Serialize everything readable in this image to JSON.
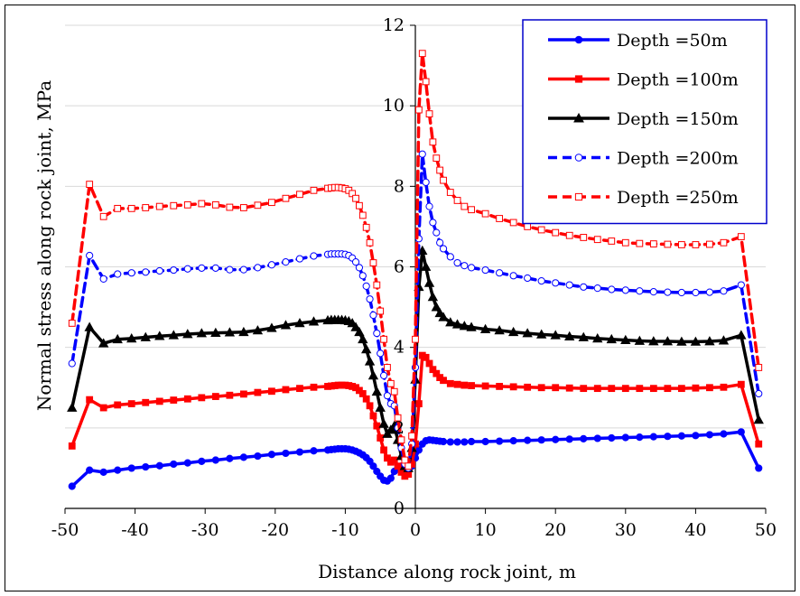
{
  "chart_data": {
    "type": "line",
    "title": "",
    "xlabel": "Distance along rock joint, m",
    "ylabel": "Normal stress  along  rock joint, MPa",
    "xlim": [
      -50,
      50
    ],
    "ylim": [
      0,
      12
    ],
    "xticks": [
      -50,
      -40,
      -30,
      -20,
      -10,
      0,
      10,
      20,
      30,
      40,
      50
    ],
    "yticks": [
      0,
      2,
      4,
      6,
      8,
      10,
      12
    ],
    "grid": "horizontal",
    "legend_position": "top-right",
    "series": [
      {
        "name": "Depth =50m",
        "color": "#0000ff",
        "dash": "solid",
        "marker": "circle-filled",
        "x": [
          -49,
          -46.5,
          -44.5,
          -42.5,
          -40.5,
          -38.5,
          -36.5,
          -34.5,
          -32.5,
          -30.5,
          -28.5,
          -26.5,
          -24.5,
          -22.5,
          -20.5,
          -18.5,
          -16.5,
          -14.5,
          -12.5,
          -12,
          -11.5,
          -11,
          -10.5,
          -10,
          -9.5,
          -9,
          -8.5,
          -8,
          -7.5,
          -7,
          -6.5,
          -6,
          -5.5,
          -5,
          -4.5,
          -4,
          -3.5,
          -3,
          -2.5,
          -2,
          -1.5,
          -1,
          -0.5,
          0,
          0.5,
          1,
          1.5,
          2,
          2.5,
          3,
          3.5,
          4,
          5,
          6,
          7,
          8,
          10,
          12,
          14,
          16,
          18,
          20,
          22,
          24,
          26,
          28,
          30,
          32,
          34,
          36,
          38,
          40,
          42,
          44,
          46.5,
          49
        ],
        "y": [
          0.55,
          0.95,
          0.9,
          0.95,
          1.0,
          1.03,
          1.06,
          1.1,
          1.13,
          1.17,
          1.2,
          1.24,
          1.27,
          1.3,
          1.34,
          1.37,
          1.4,
          1.43,
          1.45,
          1.46,
          1.47,
          1.48,
          1.48,
          1.48,
          1.47,
          1.45,
          1.42,
          1.38,
          1.33,
          1.26,
          1.17,
          1.05,
          0.92,
          0.8,
          0.7,
          0.68,
          0.75,
          0.92,
          1.0,
          1.05,
          1.02,
          0.98,
          1.05,
          1.25,
          1.45,
          1.6,
          1.68,
          1.7,
          1.69,
          1.68,
          1.67,
          1.66,
          1.65,
          1.65,
          1.65,
          1.66,
          1.66,
          1.67,
          1.68,
          1.69,
          1.7,
          1.71,
          1.72,
          1.73,
          1.74,
          1.75,
          1.76,
          1.77,
          1.78,
          1.79,
          1.8,
          1.81,
          1.83,
          1.85,
          1.9,
          1.0
        ]
      },
      {
        "name": "Depth =100m",
        "color": "#ff0000",
        "dash": "solid",
        "marker": "square-filled",
        "x": [
          -49,
          -46.5,
          -44.5,
          -42.5,
          -40.5,
          -38.5,
          -36.5,
          -34.5,
          -32.5,
          -30.5,
          -28.5,
          -26.5,
          -24.5,
          -22.5,
          -20.5,
          -18.5,
          -16.5,
          -14.5,
          -12.5,
          -12,
          -11.5,
          -11,
          -10.5,
          -10,
          -9.5,
          -9,
          -8.5,
          -8,
          -7.5,
          -7,
          -6.5,
          -6,
          -5.5,
          -5,
          -4.5,
          -4,
          -3.5,
          -3,
          -2.5,
          -2,
          -1.5,
          -1,
          -0.5,
          0,
          0.5,
          1,
          1.5,
          2,
          2.5,
          3,
          3.5,
          4,
          5,
          6,
          7,
          8,
          10,
          12,
          14,
          16,
          18,
          20,
          22,
          24,
          26,
          28,
          30,
          32,
          34,
          36,
          38,
          40,
          42,
          44,
          46.5,
          49
        ],
        "y": [
          1.55,
          2.7,
          2.5,
          2.57,
          2.6,
          2.63,
          2.66,
          2.69,
          2.72,
          2.75,
          2.78,
          2.81,
          2.84,
          2.88,
          2.91,
          2.95,
          2.98,
          3.01,
          3.03,
          3.04,
          3.05,
          3.06,
          3.06,
          3.06,
          3.05,
          3.03,
          3.0,
          2.93,
          2.85,
          2.72,
          2.55,
          2.3,
          2.05,
          1.75,
          1.45,
          1.25,
          1.15,
          1.2,
          1.05,
          0.9,
          0.8,
          0.85,
          1.1,
          1.6,
          2.6,
          3.8,
          3.75,
          3.6,
          3.45,
          3.35,
          3.25,
          3.18,
          3.1,
          3.08,
          3.06,
          3.05,
          3.04,
          3.03,
          3.02,
          3.01,
          3.0,
          3.0,
          2.99,
          2.98,
          2.98,
          2.98,
          2.98,
          2.98,
          2.98,
          2.98,
          2.98,
          2.99,
          3.0,
          3.01,
          3.08,
          1.6
        ]
      },
      {
        "name": "Depth =150m",
        "color": "#000000",
        "dash": "solid",
        "marker": "triangle-filled",
        "x": [
          -49,
          -46.5,
          -44.5,
          -42.5,
          -40.5,
          -38.5,
          -36.5,
          -34.5,
          -32.5,
          -30.5,
          -28.5,
          -26.5,
          -24.5,
          -22.5,
          -20.5,
          -18.5,
          -16.5,
          -14.5,
          -12.5,
          -12,
          -11.5,
          -11,
          -10.5,
          -10,
          -9.5,
          -9,
          -8.5,
          -8,
          -7.5,
          -7,
          -6.5,
          -6,
          -5.5,
          -5,
          -4.5,
          -4,
          -3.5,
          -3,
          -2.5,
          -2,
          -1.5,
          -1,
          -0.5,
          0,
          0.5,
          1,
          1.5,
          2,
          2.5,
          3,
          3.5,
          4,
          5,
          6,
          7,
          8,
          10,
          12,
          14,
          16,
          18,
          20,
          22,
          24,
          26,
          28,
          30,
          32,
          34,
          36,
          38,
          40,
          42,
          44,
          46.5,
          49
        ],
        "y": [
          2.5,
          4.5,
          4.1,
          4.2,
          4.22,
          4.25,
          4.28,
          4.3,
          4.33,
          4.35,
          4.36,
          4.37,
          4.38,
          4.42,
          4.48,
          4.55,
          4.6,
          4.64,
          4.67,
          4.68,
          4.68,
          4.68,
          4.68,
          4.67,
          4.65,
          4.6,
          4.5,
          4.38,
          4.2,
          3.95,
          3.65,
          3.3,
          2.9,
          2.5,
          2.1,
          1.85,
          1.95,
          2.05,
          1.7,
          1.3,
          1.05,
          1.0,
          1.5,
          3.2,
          5.5,
          6.4,
          6.0,
          5.6,
          5.25,
          5.0,
          4.85,
          4.75,
          4.62,
          4.57,
          4.53,
          4.5,
          4.45,
          4.42,
          4.38,
          4.35,
          4.32,
          4.3,
          4.27,
          4.25,
          4.22,
          4.2,
          4.18,
          4.16,
          4.15,
          4.15,
          4.14,
          4.14,
          4.15,
          4.17,
          4.3,
          2.2
        ]
      },
      {
        "name": "Depth =200m",
        "color": "#0000ff",
        "dash": "dashed",
        "marker": "circle-open",
        "x": [
          -49,
          -46.5,
          -44.5,
          -42.5,
          -40.5,
          -38.5,
          -36.5,
          -34.5,
          -32.5,
          -30.5,
          -28.5,
          -26.5,
          -24.5,
          -22.5,
          -20.5,
          -18.5,
          -16.5,
          -14.5,
          -12.5,
          -12,
          -11.5,
          -11,
          -10.5,
          -10,
          -9.5,
          -9,
          -8.5,
          -8,
          -7.5,
          -7,
          -6.5,
          -6,
          -5.5,
          -5,
          -4.5,
          -4,
          -3.5,
          -3,
          -2.5,
          -2,
          -1.5,
          -1,
          -0.5,
          0,
          0.5,
          1,
          1.5,
          2,
          2.5,
          3,
          3.5,
          4,
          5,
          6,
          7,
          8,
          10,
          12,
          14,
          16,
          18,
          20,
          22,
          24,
          26,
          28,
          30,
          32,
          34,
          36,
          38,
          40,
          42,
          44,
          46.5,
          49
        ],
        "y": [
          3.6,
          6.28,
          5.7,
          5.82,
          5.85,
          5.87,
          5.9,
          5.92,
          5.95,
          5.97,
          5.97,
          5.93,
          5.93,
          5.98,
          6.05,
          6.12,
          6.2,
          6.27,
          6.31,
          6.32,
          6.32,
          6.32,
          6.32,
          6.31,
          6.28,
          6.22,
          6.12,
          5.98,
          5.78,
          5.52,
          5.2,
          4.8,
          4.35,
          3.85,
          3.3,
          2.8,
          2.6,
          2.55,
          2.0,
          1.5,
          1.1,
          1.0,
          1.6,
          3.5,
          6.7,
          8.8,
          8.1,
          7.5,
          7.1,
          6.85,
          6.6,
          6.45,
          6.25,
          6.1,
          6.03,
          5.98,
          5.92,
          5.85,
          5.78,
          5.72,
          5.65,
          5.6,
          5.55,
          5.5,
          5.47,
          5.44,
          5.42,
          5.4,
          5.38,
          5.37,
          5.36,
          5.36,
          5.37,
          5.4,
          5.55,
          2.85
        ]
      },
      {
        "name": "Depth =250m",
        "color": "#ff0000",
        "dash": "dashed",
        "marker": "square-open",
        "x": [
          -49,
          -46.5,
          -44.5,
          -42.5,
          -40.5,
          -38.5,
          -36.5,
          -34.5,
          -32.5,
          -30.5,
          -28.5,
          -26.5,
          -24.5,
          -22.5,
          -20.5,
          -18.5,
          -16.5,
          -14.5,
          -12.5,
          -12,
          -11.5,
          -11,
          -10.5,
          -10,
          -9.5,
          -9,
          -8.5,
          -8,
          -7.5,
          -7,
          -6.5,
          -6,
          -5.5,
          -5,
          -4.5,
          -4,
          -3.5,
          -3,
          -2.5,
          -2,
          -1.5,
          -1,
          -0.5,
          0,
          0.5,
          1,
          1.5,
          2,
          2.5,
          3,
          3.5,
          4,
          5,
          6,
          7,
          8,
          10,
          12,
          14,
          16,
          18,
          20,
          22,
          24,
          26,
          28,
          30,
          32,
          34,
          36,
          38,
          40,
          42,
          44,
          46.5,
          49
        ],
        "y": [
          4.6,
          8.05,
          7.25,
          7.45,
          7.45,
          7.47,
          7.5,
          7.52,
          7.54,
          7.57,
          7.54,
          7.48,
          7.47,
          7.53,
          7.6,
          7.7,
          7.8,
          7.9,
          7.95,
          7.96,
          7.97,
          7.97,
          7.96,
          7.94,
          7.9,
          7.82,
          7.7,
          7.52,
          7.28,
          6.98,
          6.6,
          6.1,
          5.55,
          4.9,
          4.2,
          3.5,
          3.1,
          2.9,
          2.25,
          1.7,
          1.2,
          1.05,
          1.8,
          4.2,
          9.9,
          11.3,
          10.6,
          9.8,
          9.1,
          8.7,
          8.4,
          8.15,
          7.85,
          7.65,
          7.5,
          7.42,
          7.32,
          7.2,
          7.1,
          7.0,
          6.92,
          6.85,
          6.78,
          6.73,
          6.68,
          6.64,
          6.6,
          6.58,
          6.57,
          6.56,
          6.55,
          6.55,
          6.56,
          6.6,
          6.75,
          3.5
        ]
      }
    ]
  }
}
